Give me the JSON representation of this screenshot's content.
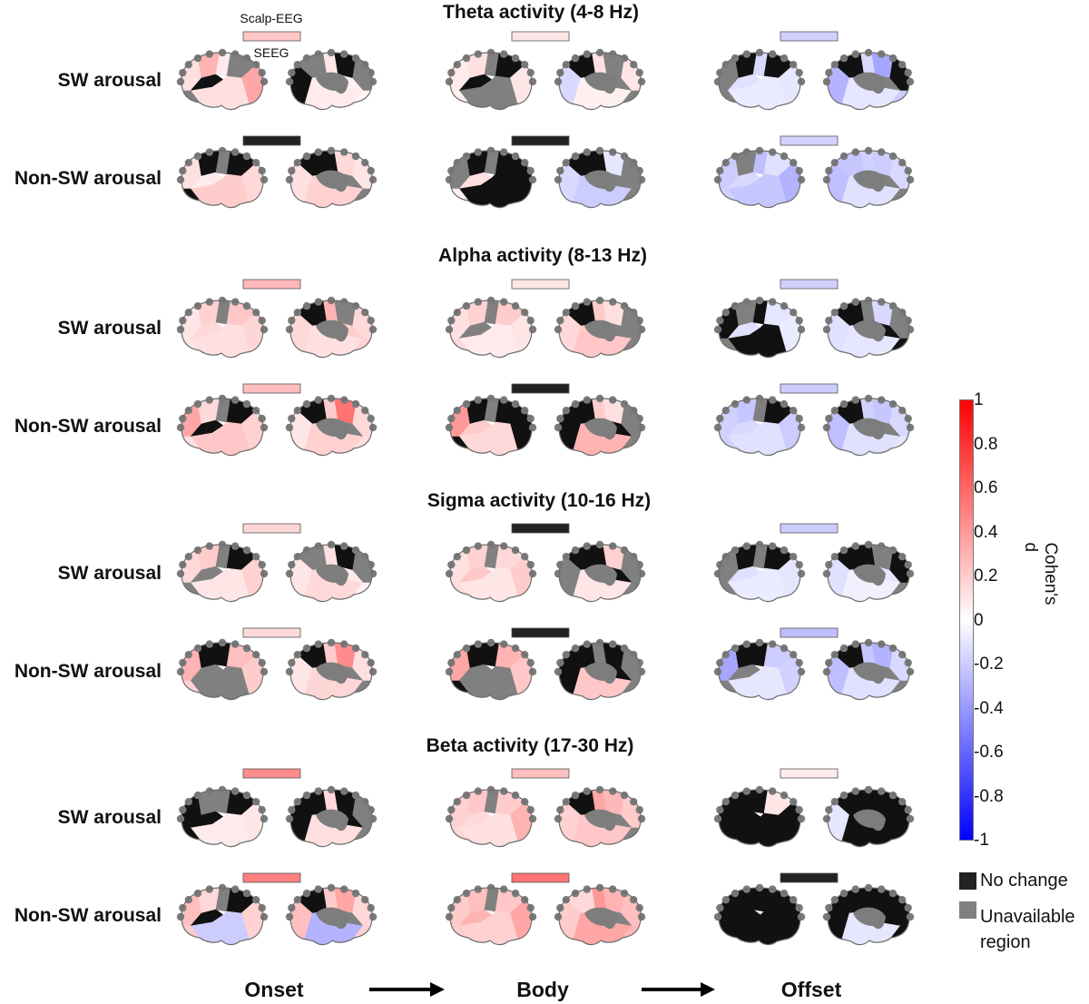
{
  "bands": [
    {
      "title": "Theta activity (4-8 Hz)",
      "rows": [
        {
          "label": "SW arousal",
          "cells": [
            {
              "d": 0.22,
              "lat": [
                0.12,
                0.3,
                -1,
                0.08,
                -2,
                0.35,
                0.12,
                -2
              ],
              "med": [
                -2,
                -1,
                0.06,
                0.1,
                -2,
                -1,
                0.08,
                0.04
              ]
            },
            {
              "d": 0.1,
              "lat": [
                0.08,
                0.12,
                -1,
                -2,
                -1,
                0.1,
                -2,
                0.06
              ],
              "med": [
                0.1,
                -2,
                -2,
                0.12,
                -1,
                -0.15,
                0.06,
                -2
              ]
            },
            {
              "d": -0.18,
              "lat": [
                -2,
                -1,
                -0.12,
                -0.15,
                -1,
                -0.1,
                -0.08,
                -2
              ],
              "med": [
                -1,
                -0.35,
                -2,
                -0.15,
                -1,
                -0.3,
                -0.1,
                -0.2
              ]
            }
          ]
        },
        {
          "label": "Non-SW arousal",
          "cells": [
            {
              "d": -99,
              "lat": [
                0.12,
                -1,
                0.08,
                -2,
                -1,
                0.15,
                0.2,
                -1
              ],
              "med": [
                0.1,
                0.15,
                -2,
                -1,
                -1,
                0.12,
                0.18,
                -2
              ]
            },
            {
              "d": -99,
              "lat": [
                -2,
                -1,
                0.12,
                -2,
                -1,
                -1,
                -1,
                0.06
              ],
              "med": [
                -2,
                -0.1,
                -2,
                -1,
                -1,
                -0.15,
                -0.2,
                -2
              ]
            },
            {
              "d": -0.18,
              "lat": [
                -0.2,
                -2,
                -0.15,
                -0.25,
                -0.12,
                -0.3,
                -0.22,
                -0.18
              ],
              "med": [
                -0.15,
                -0.2,
                -2,
                -0.18,
                -0.22,
                -0.25,
                -0.12,
                -2
              ]
            }
          ]
        }
      ]
    },
    {
      "title": "Alpha activity (8-13 Hz)",
      "rows": [
        {
          "label": "SW arousal",
          "cells": [
            {
              "d": 0.28,
              "lat": [
                0.1,
                0.18,
                0.15,
                -2,
                0.22,
                0.16,
                0.12,
                0.1
              ],
              "med": [
                0.15,
                -2,
                0.2,
                0.3,
                -1,
                0.15,
                0.12,
                0.18
              ]
            },
            {
              "d": 0.1,
              "lat": [
                0.12,
                0.18,
                -2,
                -2,
                0.2,
                0.1,
                0.08,
                0.15
              ],
              "med": [
                -2,
                0.12,
                -2,
                0.2,
                -1,
                0.15,
                0.22,
                -2
              ]
            },
            {
              "d": -0.18,
              "lat": [
                -1,
                -2,
                -0.12,
                -1,
                -0.1,
                -0.08,
                -1,
                -2
              ],
              "med": [
                -2,
                -0.15,
                -1,
                -2,
                -1,
                -0.12,
                -0.1,
                -1
              ]
            }
          ]
        },
        {
          "label": "Non-SW arousal",
          "cells": [
            {
              "d": 0.25,
              "lat": [
                0.35,
                0.15,
                -1,
                -2,
                -1,
                0.18,
                0.22,
                0.12
              ],
              "med": [
                0.15,
                0.55,
                -2,
                0.2,
                -1,
                0.1,
                0.18,
                0.12
              ]
            },
            {
              "d": -99,
              "lat": [
                0.4,
                -1,
                0.2,
                -2,
                -1,
                -1,
                0.15,
                -1
              ],
              "med": [
                -2,
                0.12,
                -1,
                0.2,
                -1,
                -1,
                0.3,
                -2
              ]
            },
            {
              "d": -0.2,
              "lat": [
                -0.18,
                -0.22,
                -0.15,
                -2,
                -1,
                -0.2,
                -0.12,
                -0.18
              ],
              "med": [
                -0.15,
                -0.22,
                -2,
                -0.18,
                -1,
                -0.25,
                -0.12,
                -0.1
              ]
            }
          ]
        }
      ]
    },
    {
      "title": "Sigma activity (10-16 Hz)",
      "rows": [
        {
          "label": "SW arousal",
          "cells": [
            {
              "d": 0.16,
              "lat": [
                0.15,
                0.2,
                -2,
                -2,
                -1,
                0.18,
                0.1,
                -2
              ],
              "med": [
                -2,
                -1,
                0.08,
                0.12,
                -2,
                0.1,
                0.15,
                0.06
              ]
            },
            {
              "d": -99,
              "lat": [
                0.12,
                0.18,
                0.22,
                -2,
                0.15,
                0.2,
                0.1,
                0.14
              ],
              "med": [
                -2,
                0.18,
                -1,
                -1,
                -1,
                -2,
                0.1,
                -2
              ]
            },
            {
              "d": -0.2,
              "lat": [
                -2,
                -1,
                -0.12,
                -2,
                -1,
                -0.1,
                -0.08,
                -2
              ],
              "med": [
                -1,
                -2,
                -0.1,
                -1,
                -1,
                -0.12,
                -0.06,
                -2
              ]
            }
          ]
        },
        {
          "label": "Non-SW arousal",
          "cells": [
            {
              "d": 0.15,
              "lat": [
                0.3,
                -1,
                -2,
                -1,
                0.25,
                0.2,
                -2,
                0.18
              ],
              "med": [
                0.12,
                0.45,
                -2,
                0.2,
                -1,
                0.1,
                0.16,
                -2
              ]
            },
            {
              "d": -99,
              "lat": [
                0.35,
                -1,
                -2,
                -1,
                0.3,
                0.22,
                -2,
                -1
              ],
              "med": [
                -2,
                -1,
                -1,
                -2,
                -1,
                -1,
                0.22,
                -2
              ]
            },
            {
              "d": -0.25,
              "lat": [
                -0.35,
                -1,
                -2,
                -1,
                -0.2,
                -0.18,
                -0.1,
                -2
              ],
              "med": [
                -0.15,
                -0.3,
                -2,
                -0.22,
                -1,
                -0.25,
                -0.12,
                -2
              ]
            }
          ]
        }
      ]
    },
    {
      "title": "Beta activity (17-30 Hz)",
      "rows": [
        {
          "label": "SW arousal",
          "cells": [
            {
              "d": 0.45,
              "lat": [
                -1,
                -2,
                -1,
                -2,
                -1,
                0.1,
                0.08,
                -1
              ],
              "med": [
                -2,
                -1,
                -1,
                0.15,
                -1,
                -1,
                0.12,
                -2
              ]
            },
            {
              "d": 0.25,
              "lat": [
                0.18,
                0.22,
                0.15,
                -2,
                0.2,
                0.3,
                0.12,
                0.15
              ],
              "med": [
                0.2,
                0.28,
                -2,
                0.35,
                -1,
                0.18,
                0.22,
                -2
              ]
            },
            {
              "d": 0.08,
              "lat": [
                -1,
                -1,
                -1,
                -1,
                0.1,
                -1,
                -1,
                -1
              ],
              "med": [
                -1,
                -1,
                -1,
                -1,
                -1,
                -0.1,
                -1,
                -1
              ]
            }
          ]
        },
        {
          "label": "Non-SW arousal",
          "cells": [
            {
              "d": 0.5,
              "lat": [
                0.25,
                0.15,
                -1,
                -2,
                -1,
                0.18,
                -0.2,
                0.2
              ],
              "med": [
                0.15,
                0.35,
                -2,
                0.2,
                -1,
                0.25,
                -0.3,
                0.18
              ]
            },
            {
              "d": 0.55,
              "lat": [
                0.2,
                0.25,
                0.3,
                -2,
                0.22,
                0.35,
                0.18,
                0.2
              ],
              "med": [
                0.25,
                0.3,
                -2,
                0.4,
                0.15,
                0.2,
                0.35,
                0.28
              ]
            },
            {
              "d": -99,
              "lat": [
                -1,
                -1,
                -1,
                -1,
                -1,
                -1,
                -1,
                -1
              ],
              "med": [
                -1,
                -1,
                -1,
                -1,
                -1,
                -1,
                -0.1,
                -1
              ]
            }
          ]
        }
      ]
    }
  ],
  "stages": [
    "Onset",
    "Body",
    "Offset"
  ],
  "inset_labels": {
    "scalp": "Scalp-EEG",
    "seeg": "SEEG"
  },
  "colorbar": {
    "title": "Cohen's d",
    "range": [
      -1,
      1
    ],
    "ticks": [
      "1",
      "0.8",
      "0.6",
      "0.4",
      "0.2",
      "0",
      "-0.2",
      "-0.4",
      "-0.6",
      "-0.8",
      "-1"
    ],
    "colors": {
      "max": "#ff0000",
      "mid": "#ffffff",
      "min": "#0000ff"
    }
  },
  "legend": {
    "no_change": "No change",
    "no_change_color": "#222222",
    "unavailable_line1": "Unavailable",
    "unavailable_line2": "region",
    "unavailable_color": "#808080"
  }
}
